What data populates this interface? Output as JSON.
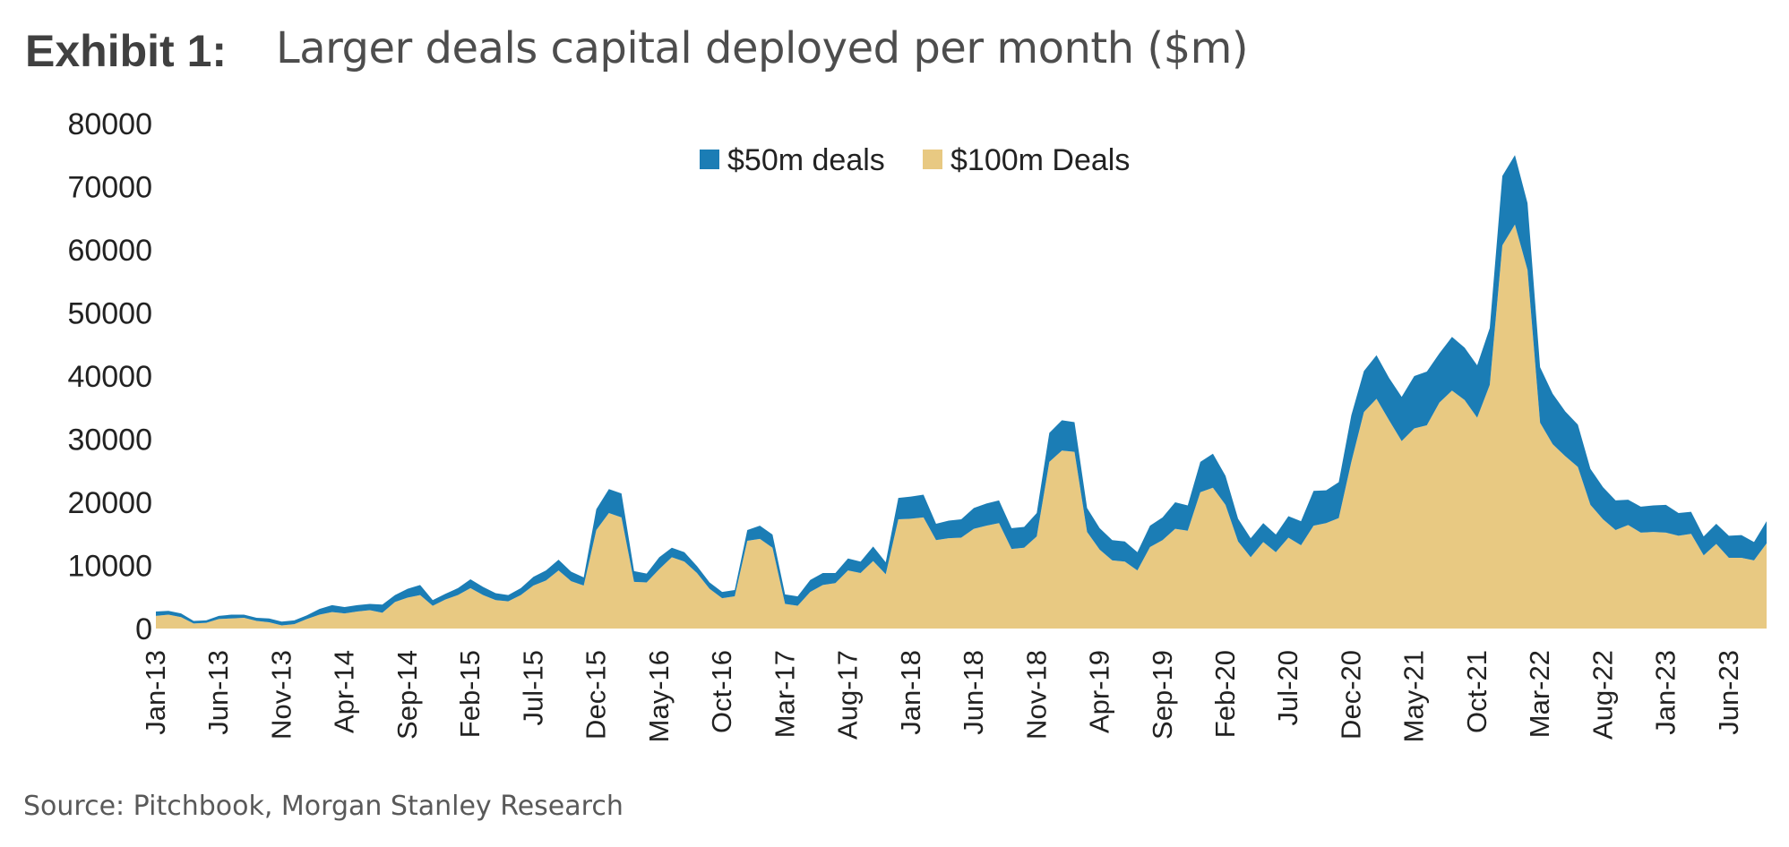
{
  "header": {
    "exhibit_label": "Exhibit 1:",
    "title": "Larger deals capital deployed per month ($m)"
  },
  "source": "Source: Pitchbook, Morgan Stanley Research",
  "chart_data": {
    "type": "area",
    "stacked": true,
    "title": "Larger deals capital deployed per month ($m)",
    "xlabel": "",
    "ylabel": "",
    "ylim": [
      0,
      80000
    ],
    "yticks": [
      0,
      10000,
      20000,
      30000,
      40000,
      50000,
      60000,
      70000,
      80000
    ],
    "x_start": "Jan-13",
    "x_end": "Oct-23",
    "x_interval_months": 1,
    "xtick_labels": [
      "Jan-13",
      "Jun-13",
      "Nov-13",
      "Apr-14",
      "Sep-14",
      "Feb-15",
      "Jul-15",
      "Dec-15",
      "May-16",
      "Oct-16",
      "Mar-17",
      "Aug-17",
      "Jan-18",
      "Jun-18",
      "Nov-18",
      "Apr-19",
      "Sep-19",
      "Feb-20",
      "Jul-20",
      "Dec-20",
      "May-21",
      "Oct-21",
      "Mar-22",
      "Aug-22",
      "Jan-23",
      "Jun-23"
    ],
    "legend_position": "top-center",
    "grid": false,
    "series": [
      {
        "name": "$100m Deals",
        "color": "#e8c982",
        "values": [
          2000,
          2200,
          1800,
          800,
          900,
          1500,
          1600,
          1700,
          1200,
          1000,
          500,
          700,
          1500,
          2200,
          2600,
          2400,
          2700,
          2900,
          2500,
          4200,
          4900,
          5300,
          3600,
          4600,
          5300,
          6400,
          5300,
          4500,
          4300,
          5300,
          6800,
          7600,
          9200,
          7500,
          6800,
          15600,
          18300,
          17600,
          7400,
          7300,
          9400,
          11300,
          10600,
          8800,
          6300,
          4800,
          5100,
          13900,
          14200,
          12800,
          3900,
          3600,
          5800,
          6900,
          7200,
          9200,
          8800,
          10700,
          8600,
          17300,
          17400,
          17600,
          14000,
          14300,
          14400,
          15800,
          16300,
          16700,
          12600,
          12800,
          14600,
          26400,
          28200,
          28000,
          15300,
          12500,
          10800,
          10600,
          9200,
          12900,
          14000,
          15800,
          15500,
          21600,
          22300,
          19600,
          13800,
          11300,
          13700,
          12100,
          14400,
          13200,
          16300,
          16700,
          17500,
          26400,
          34300,
          36400,
          33000,
          29700,
          31700,
          32200,
          35800,
          37700,
          36200,
          33400,
          38600,
          60700,
          64000,
          56800,
          32600,
          29200,
          27300,
          25600,
          19600,
          17300,
          15600,
          16400,
          15200,
          15300,
          15200,
          14700,
          15000,
          11600,
          13400,
          11200,
          11200,
          10800,
          13500
        ]
      },
      {
        "name": "$50m deals",
        "color": "#1b7db5",
        "values": [
          700,
          600,
          600,
          400,
          400,
          500,
          600,
          500,
          500,
          600,
          600,
          600,
          600,
          900,
          1100,
          1000,
          1000,
          1000,
          1300,
          1100,
          1400,
          1600,
          900,
          900,
          1100,
          1400,
          1300,
          1100,
          1000,
          1100,
          1400,
          1600,
          1700,
          1500,
          1300,
          3300,
          3800,
          3800,
          1700,
          1400,
          1900,
          1500,
          1500,
          1100,
          1000,
          1000,
          1000,
          1700,
          2100,
          2100,
          1500,
          1500,
          1900,
          1900,
          1600,
          1900,
          1800,
          2300,
          1900,
          3400,
          3500,
          3600,
          2600,
          2800,
          2900,
          3300,
          3500,
          3600,
          3300,
          3300,
          3700,
          4600,
          4800,
          4700,
          3800,
          3400,
          3200,
          3200,
          2900,
          3400,
          3600,
          4200,
          4000,
          4800,
          5400,
          4600,
          3600,
          3000,
          3000,
          2800,
          3400,
          3800,
          5500,
          5200,
          5700,
          7400,
          6500,
          6900,
          6700,
          7000,
          8300,
          8500,
          7800,
          8500,
          8300,
          8300,
          9000,
          11000,
          11000,
          10600,
          8800,
          8000,
          7100,
          6700,
          5700,
          5100,
          4700,
          4000,
          4100,
          4200,
          4400,
          3600,
          3500,
          3000,
          3200,
          3500,
          3600,
          2900,
          3500
        ]
      }
    ]
  }
}
